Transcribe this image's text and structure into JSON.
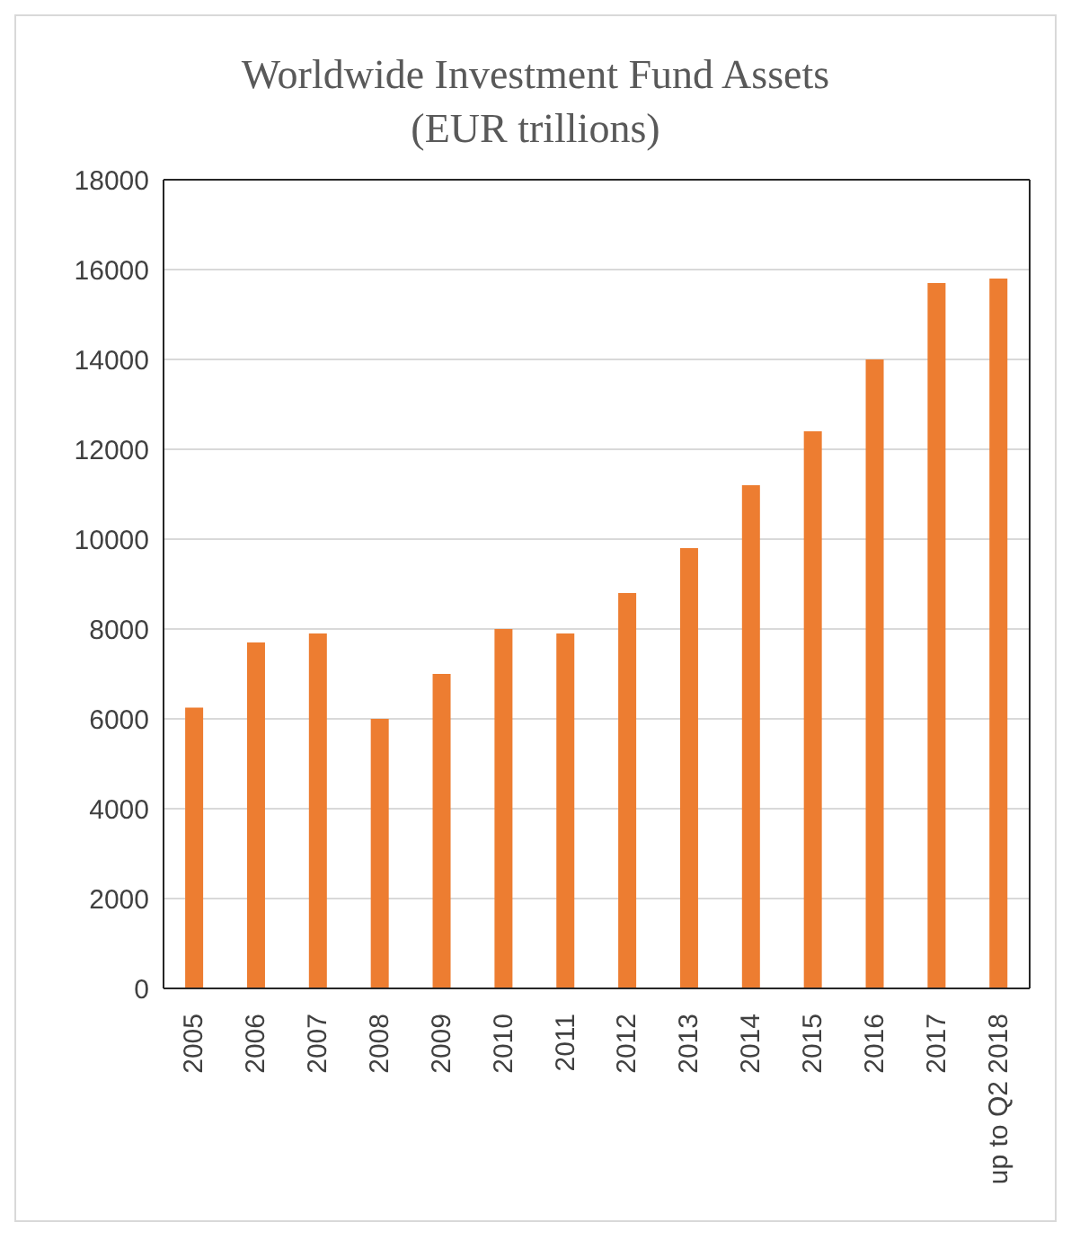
{
  "chart_data": {
    "type": "bar",
    "title": "Worldwide Investment Fund Assets (EUR trillions)",
    "categories": [
      "2005",
      "2006",
      "2007",
      "2008",
      "2009",
      "2010",
      "2011",
      "2012",
      "2013",
      "2014",
      "2015",
      "2016",
      "2017",
      "up to Q2 2018"
    ],
    "values": [
      6250,
      7700,
      7900,
      6000,
      7000,
      8000,
      7900,
      8800,
      9800,
      11200,
      12400,
      14000,
      15700,
      15800
    ],
    "color": "#ed7d31",
    "ylim": [
      0,
      18000
    ],
    "yticks": [
      0,
      2000,
      4000,
      6000,
      8000,
      10000,
      12000,
      14000,
      16000,
      18000
    ],
    "grid": "y"
  }
}
